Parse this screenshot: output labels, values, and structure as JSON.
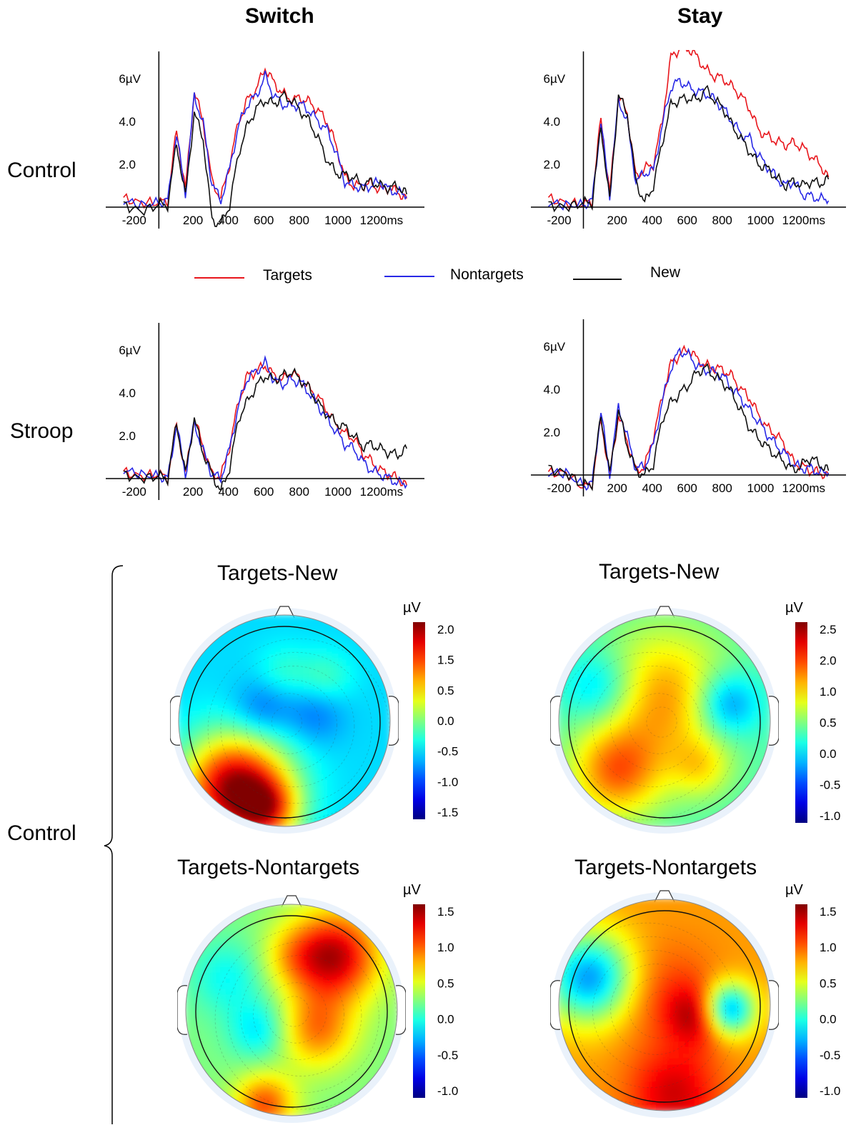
{
  "columns": [
    "Switch",
    "Stay"
  ],
  "rows": [
    "Control",
    "Stroop"
  ],
  "bottom_row_label": "Control",
  "legend": [
    {
      "label": "Targets",
      "color": "#e8161c"
    },
    {
      "label": "Nontargets",
      "color": "#2929e6"
    },
    {
      "label": "New",
      "color": "#111111"
    }
  ],
  "axis": {
    "y_ticks": [
      "2.0",
      "4.0",
      "6µV"
    ],
    "x_ticks": [
      "-200",
      "200",
      "400",
      "600",
      "800",
      "1000",
      "1200ms"
    ]
  },
  "chart_data": [
    {
      "type": "line",
      "panel": "Control-Switch",
      "xlim": [
        -300,
        1500
      ],
      "ylim": [
        -1,
        7
      ],
      "x": [
        -200,
        -100,
        0,
        50,
        100,
        150,
        200,
        250,
        300,
        350,
        400,
        450,
        500,
        550,
        600,
        650,
        700,
        750,
        800,
        850,
        900,
        950,
        1000,
        1050,
        1100,
        1150,
        1200,
        1250,
        1300,
        1350,
        1400
      ],
      "series": [
        {
          "name": "Targets",
          "values": [
            0.4,
            0.2,
            0.2,
            0.3,
            3.6,
            0.8,
            5.4,
            4.0,
            1.2,
            0.4,
            2.0,
            4.0,
            5.0,
            5.5,
            6.5,
            5.8,
            5.3,
            5.0,
            5.1,
            4.9,
            4.5,
            4.0,
            2.9,
            1.4,
            1.0,
            1.0,
            1.1,
            0.8,
            0.9,
            0.7,
            0.4
          ]
        },
        {
          "name": "Nontargets",
          "values": [
            0.3,
            0.1,
            0.2,
            0.3,
            3.4,
            0.6,
            5.2,
            3.9,
            1.1,
            0.3,
            1.8,
            3.8,
            4.8,
            5.2,
            6.1,
            5.2,
            4.8,
            4.7,
            4.8,
            4.5,
            4.0,
            3.6,
            2.6,
            1.2,
            1.0,
            0.9,
            1.0,
            1.2,
            0.8,
            0.7,
            0.5
          ]
        },
        {
          "name": "New",
          "values": [
            0.1,
            -0.2,
            0.1,
            0.1,
            3.0,
            0.5,
            4.4,
            3.2,
            -0.6,
            -0.8,
            0.1,
            2.5,
            3.8,
            4.6,
            5.0,
            4.8,
            5.2,
            5.0,
            4.5,
            4.0,
            3.2,
            2.2,
            1.6,
            1.5,
            1.4,
            1.0,
            1.2,
            1.0,
            0.9,
            1.0,
            0.6
          ]
        }
      ]
    },
    {
      "type": "line",
      "panel": "Control-Stay",
      "xlim": [
        -300,
        1500
      ],
      "ylim": [
        -1,
        7
      ],
      "x": [
        -200,
        -100,
        0,
        50,
        100,
        150,
        200,
        250,
        300,
        350,
        400,
        450,
        500,
        550,
        600,
        650,
        700,
        750,
        800,
        850,
        900,
        950,
        1000,
        1050,
        1100,
        1150,
        1200,
        1250,
        1300,
        1350,
        1400
      ],
      "series": [
        {
          "name": "Targets",
          "values": [
            0.4,
            0.2,
            0.1,
            0.3,
            4.2,
            0.6,
            5.2,
            4.4,
            1.4,
            1.8,
            2.0,
            4.0,
            7.0,
            7.4,
            7.4,
            7.0,
            6.4,
            6.1,
            6.0,
            5.6,
            5.2,
            4.6,
            3.6,
            3.3,
            3.1,
            2.9,
            3.0,
            2.8,
            2.4,
            2.0,
            1.4
          ]
        },
        {
          "name": "Nontargets",
          "values": [
            0.2,
            0.1,
            0.1,
            0.3,
            4.0,
            0.5,
            5.0,
            4.0,
            1.2,
            1.6,
            1.7,
            3.8,
            5.6,
            5.9,
            5.6,
            5.4,
            5.3,
            5.0,
            4.6,
            4.0,
            3.4,
            3.2,
            2.4,
            1.9,
            1.4,
            1.0,
            1.2,
            0.6,
            0.5,
            0.4,
            0.3
          ]
        },
        {
          "name": "New",
          "values": [
            0.1,
            0.0,
            0.2,
            0.2,
            3.8,
            0.3,
            5.2,
            4.4,
            1.2,
            0.2,
            1.0,
            3.0,
            4.8,
            5.0,
            5.1,
            5.0,
            5.5,
            5.0,
            4.6,
            3.8,
            3.2,
            2.6,
            2.0,
            1.8,
            1.4,
            1.0,
            1.2,
            1.0,
            1.2,
            1.1,
            1.3
          ]
        }
      ]
    },
    {
      "type": "line",
      "panel": "Stroop-Switch",
      "xlim": [
        -300,
        1500
      ],
      "ylim": [
        -1,
        7
      ],
      "x": [
        -200,
        -100,
        0,
        50,
        100,
        150,
        200,
        250,
        300,
        350,
        400,
        450,
        500,
        550,
        600,
        650,
        700,
        750,
        800,
        850,
        900,
        950,
        1000,
        1050,
        1100,
        1150,
        1200,
        1250,
        1300,
        1350,
        1400
      ],
      "series": [
        {
          "name": "Targets",
          "values": [
            0.3,
            0.1,
            0.2,
            0.0,
            2.6,
            0.2,
            2.8,
            1.5,
            0.2,
            0.1,
            1.5,
            3.6,
            4.8,
            5.0,
            5.3,
            4.8,
            4.6,
            5.0,
            4.6,
            4.2,
            3.8,
            3.2,
            2.5,
            2.1,
            1.9,
            1.2,
            0.8,
            0.4,
            0.2,
            0.0,
            -0.3
          ]
        },
        {
          "name": "Nontargets",
          "values": [
            0.4,
            0.2,
            0.1,
            0.0,
            2.5,
            0.2,
            2.6,
            1.3,
            0.2,
            0.0,
            1.4,
            3.4,
            4.7,
            5.0,
            5.4,
            4.6,
            4.4,
            4.6,
            4.5,
            4.0,
            3.4,
            2.8,
            2.2,
            1.6,
            1.4,
            0.8,
            0.4,
            0.2,
            0.0,
            -0.2,
            -0.3
          ]
        },
        {
          "name": "New",
          "values": [
            0.2,
            0.0,
            0.1,
            0.0,
            2.6,
            0.2,
            2.8,
            1.2,
            0.2,
            -0.6,
            0.5,
            2.8,
            3.6,
            4.3,
            4.8,
            4.6,
            4.8,
            5.0,
            4.6,
            4.2,
            3.5,
            3.0,
            2.6,
            2.4,
            2.0,
            1.5,
            1.6,
            1.4,
            1.2,
            1.1,
            1.4
          ]
        }
      ]
    },
    {
      "type": "line",
      "panel": "Stroop-Stay",
      "xlim": [
        -300,
        1500
      ],
      "ylim": [
        -1,
        7
      ],
      "x": [
        -200,
        -100,
        0,
        50,
        100,
        150,
        200,
        250,
        300,
        350,
        400,
        450,
        500,
        550,
        600,
        650,
        700,
        750,
        800,
        850,
        900,
        950,
        1000,
        1050,
        1100,
        1150,
        1200,
        1250,
        1300,
        1350,
        1400
      ],
      "series": [
        {
          "name": "Targets",
          "values": [
            0.1,
            0.1,
            -0.6,
            -0.4,
            2.6,
            0.0,
            2.8,
            1.6,
            0.2,
            0.4,
            1.8,
            3.6,
            5.2,
            5.6,
            5.9,
            5.4,
            5.1,
            5.0,
            4.9,
            4.6,
            4.0,
            3.6,
            2.8,
            2.2,
            1.9,
            1.4,
            0.6,
            0.4,
            0.2,
            0.1,
            0.0
          ]
        },
        {
          "name": "Nontargets",
          "values": [
            0.1,
            0.1,
            -0.5,
            -0.4,
            3.0,
            0.0,
            3.2,
            1.8,
            0.3,
            0.4,
            1.4,
            3.4,
            5.0,
            5.8,
            5.6,
            5.1,
            4.9,
            4.8,
            4.6,
            4.0,
            3.6,
            3.0,
            2.5,
            1.9,
            1.4,
            1.0,
            0.5,
            0.3,
            0.3,
            0.1,
            0.1
          ]
        },
        {
          "name": "New",
          "values": [
            0.3,
            0.1,
            -0.5,
            -0.4,
            2.8,
            0.0,
            3.0,
            1.4,
            0.2,
            0.0,
            0.5,
            2.6,
            3.4,
            3.8,
            4.2,
            4.8,
            5.0,
            4.6,
            4.3,
            3.8,
            3.0,
            2.2,
            1.7,
            1.3,
            0.9,
            0.6,
            0.2,
            0.5,
            0.8,
            0.5,
            0.2
          ]
        }
      ]
    },
    {
      "type": "heatmap",
      "panel": "Targets-New (Switch)",
      "title": "Targets-New",
      "unit": "µV",
      "colorbar_ticks": [
        "2.0",
        "1.5",
        "0.5",
        "0.0",
        "-0.5",
        "-1.0",
        "-1.5"
      ],
      "range": [
        -1.5,
        2.0
      ]
    },
    {
      "type": "heatmap",
      "panel": "Targets-New (Stay)",
      "title": "Targets-New",
      "unit": "µV",
      "colorbar_ticks": [
        "2.5",
        "2.0",
        "1.0",
        "0.5",
        "0.0",
        "-0.5",
        "-1.0"
      ],
      "range": [
        -1.0,
        2.5
      ]
    },
    {
      "type": "heatmap",
      "panel": "Targets-Nontargets (Switch)",
      "title": "Targets-Nontargets",
      "unit": "µV",
      "colorbar_ticks": [
        "1.5",
        "1.0",
        "0.5",
        "0.0",
        "-0.5",
        "-1.0"
      ],
      "range": [
        -1.0,
        1.5
      ]
    },
    {
      "type": "heatmap",
      "panel": "Targets-Nontargets (Stay)",
      "title": "Targets-Nontargets",
      "unit": "µV",
      "colorbar_ticks": [
        "1.5",
        "1.0",
        "0.5",
        "0.0",
        "-0.5",
        "-1.0"
      ],
      "range": [
        -1.0,
        1.5
      ]
    }
  ]
}
